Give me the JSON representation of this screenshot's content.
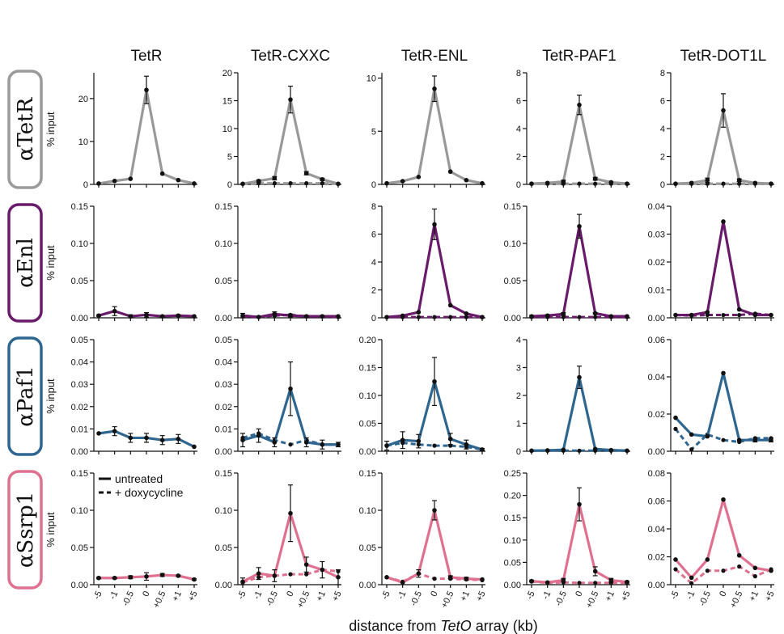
{
  "figure": {
    "xlabel_prefix": "distance from ",
    "xlabel_italic": "TetO",
    "xlabel_suffix": " array (kb)",
    "ylabel": "% input",
    "legend": {
      "solid": "untreated",
      "dashed": "+ doxycycline"
    }
  },
  "columns": [
    "TetR",
    "TetR-CXXC",
    "TetR-ENL",
    "TetR-PAF1",
    "TetR-DOT1L"
  ],
  "rows": [
    {
      "greek": "α",
      "label": "TetR",
      "color": "#999999",
      "box_color": "#9a9a9a"
    },
    {
      "greek": "α",
      "label": "Enl",
      "color": "#6a1a6a",
      "box_color": "#6a1a6a"
    },
    {
      "greek": "α",
      "label": "Paf1",
      "color": "#2f6690",
      "box_color": "#2f6690"
    },
    {
      "greek": "α",
      "label": "Ssrp1",
      "color": "#e07090",
      "box_color": "#e07090"
    }
  ],
  "chart_data": {
    "type": "line",
    "x_categories": [
      "-5",
      "-1",
      "-0.5",
      "0",
      "+0.5",
      "+1",
      "+5"
    ],
    "series_styles": {
      "untreated": "solid",
      "doxycycline": "dashed"
    },
    "panels": [
      [
        {
          "yticks": [
            "0",
            "10",
            "20"
          ],
          "ymax": 26,
          "untreated": [
            0.2,
            0.8,
            1.3,
            22,
            2.5,
            1.0,
            0.2
          ],
          "doxycycline": null,
          "err": [
            0,
            0,
            0,
            3.2,
            0,
            0,
            0
          ]
        },
        {
          "yticks": [
            "0",
            "5",
            "10",
            "15",
            "20"
          ],
          "ymax": 20,
          "untreated": [
            0.1,
            0.6,
            1.1,
            15.2,
            2.0,
            0.9,
            0.1
          ],
          "doxycycline": [
            0.1,
            0.2,
            0.2,
            0.2,
            0.2,
            0.2,
            0.1
          ],
          "err": [
            0,
            0.2,
            0.3,
            2.4,
            0.3,
            0.2,
            0
          ]
        },
        {
          "yticks": [
            "0",
            "5",
            "10"
          ],
          "ymax": 10.5,
          "untreated": [
            0.1,
            0.3,
            0.7,
            9.0,
            1.2,
            0.4,
            0.1
          ],
          "doxycycline": null,
          "err": [
            0,
            0,
            0,
            1.2,
            0,
            0,
            0
          ]
        },
        {
          "yticks": [
            "0",
            "2",
            "4",
            "6",
            "8"
          ],
          "ymax": 8,
          "untreated": [
            0.05,
            0.1,
            0.2,
            5.7,
            0.4,
            0.15,
            0.05
          ],
          "doxycycline": [
            0.05,
            0.05,
            0.05,
            0.05,
            0.05,
            0.05,
            0.05
          ],
          "err": [
            0,
            0,
            0.1,
            0.7,
            0.1,
            0,
            0
          ]
        },
        {
          "yticks": [
            "0",
            "2",
            "4",
            "6",
            "8"
          ],
          "ymax": 8,
          "untreated": [
            0.05,
            0.1,
            0.3,
            5.3,
            0.3,
            0.1,
            0.05
          ],
          "doxycycline": [
            0.05,
            0.05,
            0.05,
            0.05,
            0.05,
            0.05,
            0.05
          ],
          "err": [
            0,
            0,
            0.15,
            1.2,
            0.1,
            0,
            0
          ]
        }
      ],
      [
        {
          "yticks": [
            "0.00",
            "0.05",
            "0.10",
            "0.15"
          ],
          "ymax": 0.15,
          "untreated": [
            0.003,
            0.009,
            0.002,
            0.004,
            0.002,
            0.003,
            0.002
          ],
          "doxycycline": null,
          "err": [
            0.001,
            0.006,
            0.002,
            0.003,
            0.001,
            0.001,
            0
          ]
        },
        {
          "yticks": [
            "0.00",
            "0.05",
            "0.10",
            "0.15"
          ],
          "ymax": 0.15,
          "untreated": [
            0.003,
            0.001,
            0.005,
            0.003,
            0.002,
            0.002,
            0.002
          ],
          "doxycycline": [
            0.002,
            0.001,
            0.003,
            0.004,
            0.002,
            0.002,
            0.001
          ],
          "err": [
            0.003,
            0.001,
            0.003,
            0.002,
            0.001,
            0.001,
            0
          ]
        },
        {
          "yticks": [
            "0",
            "2",
            "4",
            "6",
            "8"
          ],
          "ymax": 8,
          "untreated": [
            0.05,
            0.15,
            0.4,
            6.7,
            0.9,
            0.3,
            0.05
          ],
          "doxycycline": [
            0.05,
            0.05,
            0.05,
            0.05,
            0.05,
            0.05,
            0.05
          ],
          "err": [
            0,
            0,
            0,
            1.1,
            0,
            0,
            0
          ]
        },
        {
          "yticks": [
            "0.00",
            "0.05",
            "0.10",
            "0.15"
          ],
          "ymax": 0.15,
          "untreated": [
            0.002,
            0.003,
            0.005,
            0.123,
            0.006,
            0.002,
            0.002
          ],
          "doxycycline": [
            0.001,
            0.001,
            0.001,
            0.001,
            0.001,
            0.001,
            0.001
          ],
          "err": [
            0.001,
            0.001,
            0.002,
            0.016,
            0.001,
            0,
            0
          ]
        },
        {
          "yticks": [
            "0.00",
            "0.01",
            "0.02",
            "0.03",
            "0.04"
          ],
          "ymax": 0.04,
          "untreated": [
            0.001,
            0.001,
            0.002,
            0.0345,
            0.003,
            0.001,
            0.001
          ],
          "doxycycline": [
            0.001,
            0.0008,
            0.001,
            0.001,
            0.001,
            0.0015,
            0.001
          ],
          "err": [
            0,
            0,
            0,
            0,
            0,
            0,
            0
          ]
        }
      ],
      [
        {
          "yticks": [
            "0.00",
            "0.01",
            "0.02",
            "0.03",
            "0.04",
            "0.05"
          ],
          "ymax": 0.05,
          "untreated": [
            0.008,
            0.009,
            0.006,
            0.006,
            0.005,
            0.0055,
            0.002
          ],
          "doxycycline": null,
          "err": [
            0,
            0.002,
            0.002,
            0.002,
            0.002,
            0.002,
            0
          ]
        },
        {
          "yticks": [
            "0.00",
            "0.01",
            "0.02",
            "0.03",
            "0.04",
            "0.05"
          ],
          "ymax": 0.05,
          "untreated": [
            0.005,
            0.007,
            0.004,
            0.028,
            0.004,
            0.003,
            0.003
          ],
          "doxycycline": [
            0.006,
            0.008,
            0.005,
            0.003,
            0.005,
            0.003,
            0.003
          ],
          "err": [
            0.003,
            0.003,
            0.002,
            0.012,
            0.002,
            0.002,
            0.001
          ]
        },
        {
          "yticks": [
            "0.00",
            "0.05",
            "0.10",
            "0.15",
            "0.20"
          ],
          "ymax": 0.2,
          "untreated": [
            0.01,
            0.02,
            0.018,
            0.125,
            0.022,
            0.012,
            0.003
          ],
          "doxycycline": [
            0.01,
            0.015,
            0.012,
            0.01,
            0.01,
            0.008,
            0.003
          ],
          "err": [
            0.008,
            0.015,
            0.012,
            0.043,
            0.01,
            0.008,
            0.002
          ]
        },
        {
          "yticks": [
            "0",
            "1",
            "2",
            "3",
            "4"
          ],
          "ymax": 4,
          "untreated": [
            0.02,
            0.03,
            0.05,
            2.65,
            0.08,
            0.04,
            0.02
          ],
          "doxycycline": [
            0.02,
            0.02,
            0.02,
            0.02,
            0.02,
            0.02,
            0.02
          ],
          "err": [
            0,
            0,
            0,
            0.4,
            0,
            0,
            0
          ]
        },
        {
          "yticks": [
            "0.00",
            "0.02",
            "0.04",
            "0.06"
          ],
          "ymax": 0.06,
          "untreated": [
            0.018,
            0.009,
            0.008,
            0.042,
            0.006,
            0.006,
            0.006
          ],
          "doxycycline": [
            0.012,
            0.001,
            0.009,
            0.006,
            0.005,
            0.007,
            0.007
          ],
          "err": [
            0,
            0,
            0,
            0,
            0,
            0.001,
            0.001
          ]
        }
      ],
      [
        {
          "yticks": [
            "0.00",
            "0.05",
            "0.10",
            "0.15"
          ],
          "ymax": 0.15,
          "untreated": [
            0.009,
            0.009,
            0.01,
            0.011,
            0.013,
            0.012,
            0.007
          ],
          "doxycycline": null,
          "err": [
            0.001,
            0.001,
            0.002,
            0.005,
            0.002,
            0.001,
            0.001
          ]
        },
        {
          "yticks": [
            "0.00",
            "0.05",
            "0.10",
            "0.15"
          ],
          "ymax": 0.15,
          "untreated": [
            0.004,
            0.015,
            0.012,
            0.096,
            0.027,
            0.02,
            0.01
          ],
          "doxycycline": [
            0.003,
            0.01,
            0.012,
            0.014,
            0.014,
            0.02,
            0.018
          ],
          "err": [
            0.005,
            0.008,
            0.008,
            0.038,
            0.01,
            0.011,
            0.01
          ]
        },
        {
          "yticks": [
            "0.00",
            "0.05",
            "0.10",
            "0.15"
          ],
          "ymax": 0.15,
          "untreated": [
            0.01,
            0.003,
            0.015,
            0.1,
            0.01,
            0.008,
            0.007
          ],
          "doxycycline": [
            0.01,
            0.004,
            0.015,
            0.008,
            0.008,
            0.007,
            0.006
          ],
          "err": [
            0,
            0,
            0.005,
            0.013,
            0.002,
            0.002,
            0
          ]
        },
        {
          "yticks": [
            "0.00",
            "0.05",
            "0.10",
            "0.15",
            "0.20",
            "0.25"
          ],
          "ymax": 0.25,
          "untreated": [
            0.008,
            0.005,
            0.01,
            0.18,
            0.03,
            0.01,
            0.006
          ],
          "doxycycline": [
            0.007,
            0.004,
            0.005,
            0.004,
            0.004,
            0.004,
            0.004
          ],
          "err": [
            0.002,
            0,
            0.004,
            0.037,
            0.01,
            0.004,
            0.002
          ]
        },
        {
          "yticks": [
            "0.00",
            "0.02",
            "0.04",
            "0.06",
            "0.08"
          ],
          "ymax": 0.08,
          "untreated": [
            0.018,
            0.005,
            0.018,
            0.061,
            0.021,
            0.012,
            0.01
          ],
          "doxycycline": [
            0.011,
            0.001,
            0.01,
            0.01,
            0.013,
            0.006,
            0.011
          ],
          "err": [
            0,
            0,
            0,
            0,
            0,
            0,
            0
          ]
        }
      ]
    ]
  }
}
